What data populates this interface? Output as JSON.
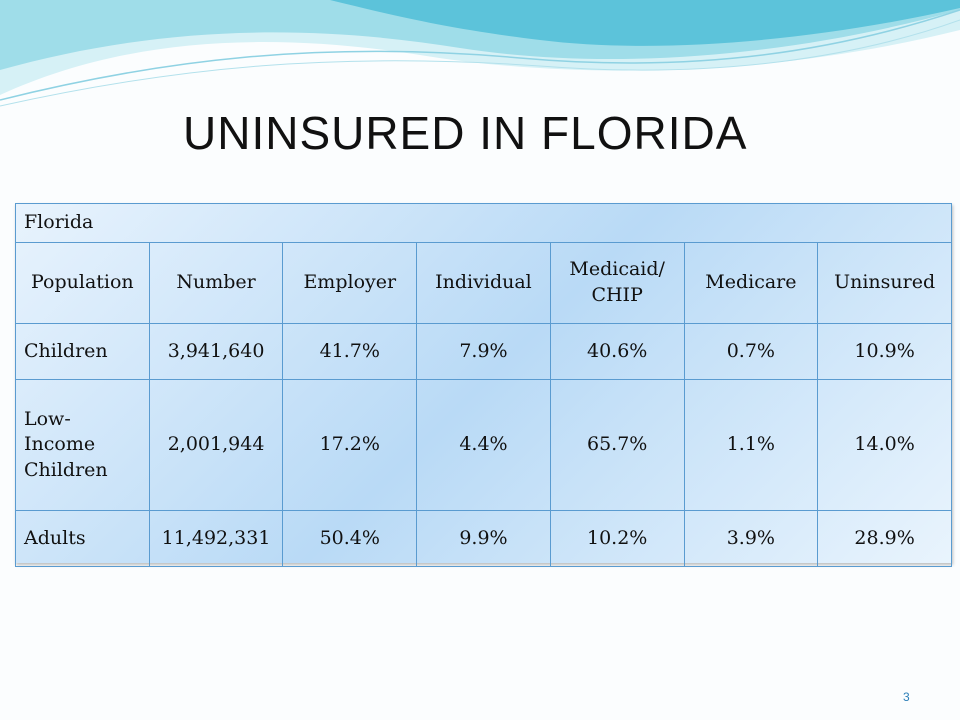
{
  "slide": {
    "title": "Uninsured in Florida",
    "page_number": "3"
  },
  "table": {
    "region": "Florida",
    "headers": [
      "Population",
      "Number",
      "Employer",
      "Individual",
      "Medicaid/ CHIP",
      "Medicare",
      "Uninsured"
    ],
    "rows": [
      [
        "Children",
        "3,941,640",
        "41.7%",
        "7.9%",
        "40.6%",
        "0.7%",
        "10.9%"
      ],
      [
        "Low-Income Children",
        "2,001,944",
        "17.2%",
        "4.4%",
        "65.7%",
        "1.1%",
        "14.0%"
      ],
      [
        "Adults",
        "11,492,331",
        "50.4%",
        "9.9%",
        "10.2%",
        "3.9%",
        "28.9%"
      ]
    ]
  },
  "colors": {
    "table_border": "#5a9bd0",
    "page_number": "#2c7fb8",
    "wave_light": "#c9ecf3",
    "wave_dark": "#7fd0e0"
  }
}
